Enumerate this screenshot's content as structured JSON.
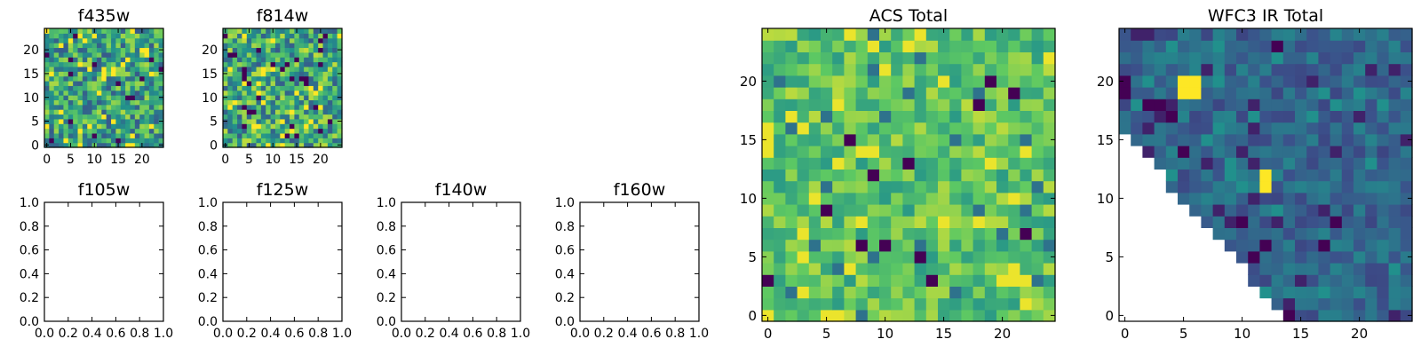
{
  "figure": {
    "palette": [
      "#440154",
      "#3b528b",
      "#21918c",
      "#5ec962",
      "#fde725"
    ]
  },
  "chart_data": [
    {
      "type": "heatmap",
      "title": "f435w",
      "grid_size": 25,
      "xlim": [
        -0.5,
        24.5
      ],
      "ylim": [
        -0.5,
        24.5
      ],
      "xticks": [
        0,
        5,
        10,
        15,
        20
      ],
      "yticks": [
        0,
        5,
        10,
        15,
        20
      ],
      "colormap": "viridis",
      "value_range": [
        0,
        1
      ],
      "fill": "random-noise",
      "seed": 11,
      "base": 0.58,
      "spread": 0.3
    },
    {
      "type": "heatmap",
      "title": "f814w",
      "grid_size": 25,
      "xlim": [
        -0.5,
        24.5
      ],
      "ylim": [
        -0.5,
        24.5
      ],
      "xticks": [
        0,
        5,
        10,
        15,
        20
      ],
      "yticks": [
        0,
        5,
        10,
        15,
        20
      ],
      "colormap": "viridis",
      "value_range": [
        0,
        1
      ],
      "fill": "random-noise",
      "seed": 29,
      "base": 0.6,
      "spread": 0.32
    },
    {
      "type": "empty",
      "title": "f105w",
      "xlim": [
        0,
        1
      ],
      "ylim": [
        0,
        1
      ],
      "xticks": [
        "0.0",
        "0.2",
        "0.4",
        "0.6",
        "0.8",
        "1.0"
      ],
      "yticks": [
        "0.0",
        "0.2",
        "0.4",
        "0.6",
        "0.8",
        "1.0"
      ]
    },
    {
      "type": "empty",
      "title": "f125w",
      "xlim": [
        0,
        1
      ],
      "ylim": [
        0,
        1
      ],
      "xticks": [
        "0.0",
        "0.2",
        "0.4",
        "0.6",
        "0.8",
        "1.0"
      ],
      "yticks": [
        "0.0",
        "0.2",
        "0.4",
        "0.6",
        "0.8",
        "1.0"
      ]
    },
    {
      "type": "empty",
      "title": "f140w",
      "xlim": [
        0,
        1
      ],
      "ylim": [
        0,
        1
      ],
      "xticks": [
        "0.0",
        "0.2",
        "0.4",
        "0.6",
        "0.8",
        "1.0"
      ],
      "yticks": [
        "0.0",
        "0.2",
        "0.4",
        "0.6",
        "0.8",
        "1.0"
      ]
    },
    {
      "type": "empty",
      "title": "f160w",
      "xlim": [
        0,
        1
      ],
      "ylim": [
        0,
        1
      ],
      "xticks": [
        "0.0",
        "0.2",
        "0.4",
        "0.6",
        "0.8",
        "1.0"
      ],
      "yticks": [
        "0.0",
        "0.2",
        "0.4",
        "0.6",
        "0.8",
        "1.0"
      ]
    },
    {
      "type": "heatmap",
      "title": "ACS Total",
      "grid_size": 25,
      "xlim": [
        -0.5,
        24.5
      ],
      "ylim": [
        -0.5,
        24.5
      ],
      "xticks": [
        0,
        5,
        10,
        15,
        20
      ],
      "yticks": [
        0,
        5,
        10,
        15,
        20
      ],
      "colormap": "viridis",
      "value_range": [
        0,
        1
      ],
      "fill": "random-noise",
      "seed": 47,
      "base": 0.72,
      "spread": 0.18,
      "low_cells": [
        [
          8,
          6
        ],
        [
          5,
          9
        ],
        [
          12,
          13
        ],
        [
          18,
          18
        ],
        [
          21,
          19
        ],
        [
          19,
          20
        ],
        [
          14,
          3
        ],
        [
          7,
          15
        ],
        [
          10,
          6
        ],
        [
          13,
          5
        ],
        [
          0,
          3
        ],
        [
          22,
          7
        ],
        [
          9,
          12
        ]
      ]
    },
    {
      "type": "heatmap",
      "title": "WFC3 IR Total",
      "grid_size": 25,
      "xlim": [
        -0.5,
        24.5
      ],
      "ylim": [
        -0.5,
        24.5
      ],
      "xticks": [
        0,
        5,
        10,
        15,
        20
      ],
      "yticks": [
        0,
        5,
        10,
        15,
        20
      ],
      "colormap": "viridis",
      "value_range": [
        0,
        1
      ],
      "fill": "random-noise",
      "seed": 73,
      "base": 0.33,
      "spread": 0.12,
      "mask": "below-diagonal",
      "mask_diagonal": {
        "x_at_bottom": 13.5,
        "y_at_left": 15.5
      },
      "high_cells": [
        [
          5,
          19
        ],
        [
          6,
          19
        ],
        [
          5,
          20
        ],
        [
          6,
          20
        ],
        [
          12,
          12
        ],
        [
          12,
          11
        ]
      ],
      "low_cells": [
        [
          14,
          0
        ],
        [
          12,
          6
        ],
        [
          4,
          17
        ],
        [
          3,
          18
        ],
        [
          0,
          20
        ],
        [
          0,
          19
        ],
        [
          13,
          23
        ],
        [
          18,
          8
        ],
        [
          17,
          6
        ],
        [
          5,
          14
        ],
        [
          2,
          18
        ],
        [
          11,
          5
        ],
        [
          10,
          8
        ]
      ]
    }
  ]
}
